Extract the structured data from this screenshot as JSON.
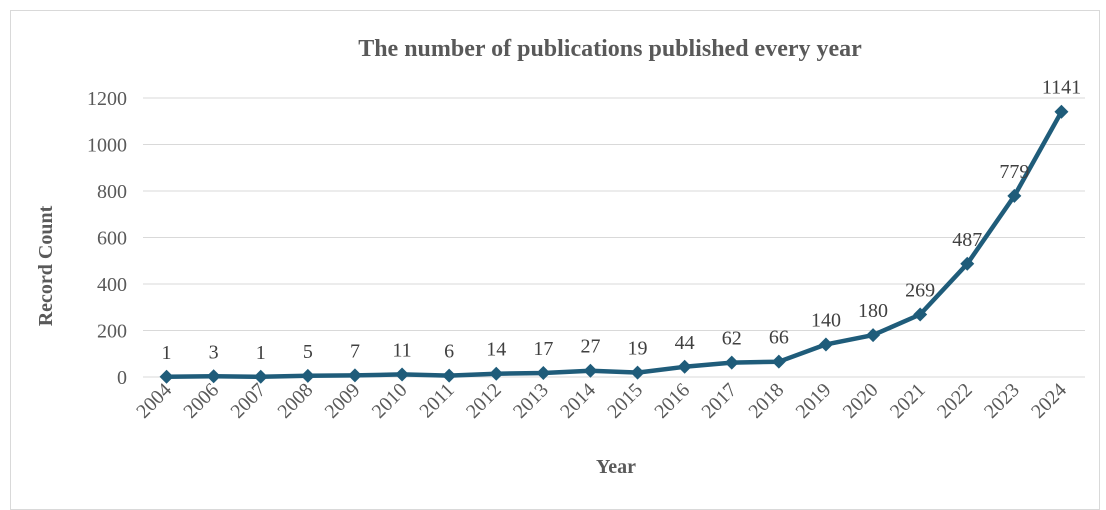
{
  "chart_data": {
    "type": "line",
    "title": "The number of publications published every year",
    "xlabel": "Year",
    "ylabel": "Record Count",
    "categories": [
      "2004",
      "2006",
      "2007",
      "2008",
      "2009",
      "2010",
      "2011",
      "2012",
      "2013",
      "2014",
      "2015",
      "2016",
      "2017",
      "2018",
      "2019",
      "2020",
      "2021",
      "2022",
      "2023",
      "2024"
    ],
    "series": [
      {
        "values": [
          1,
          3,
          1,
          5,
          7,
          11,
          6,
          14,
          17,
          27,
          19,
          44,
          62,
          66,
          140,
          180,
          269,
          487,
          779,
          1141
        ],
        "color": "#1f5c7a",
        "marker": "diamond"
      }
    ],
    "ylim": [
      0,
      1200
    ],
    "yticks": [
      0,
      200,
      400,
      600,
      800,
      1000,
      1200
    ],
    "grid": true,
    "legend": "none",
    "data_labels": true
  }
}
